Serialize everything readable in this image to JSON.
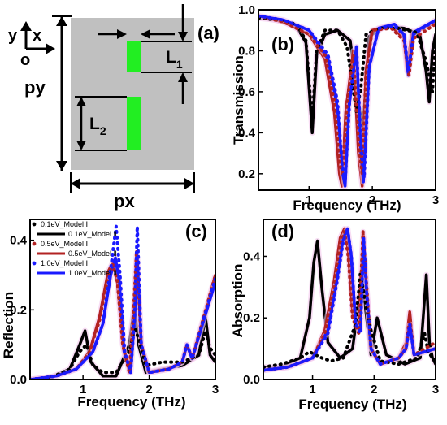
{
  "panels": {
    "a": {
      "label": "(a)",
      "axis_y": "y",
      "axis_x": "x",
      "axis_o": "o",
      "dim_py": "py",
      "dim_px": "px",
      "dim_L1": "L",
      "dim_L1_sub": "1",
      "dim_L2": "L",
      "dim_L2_sub": "2",
      "colors": {
        "cell": "#c0c0c0",
        "strip": "#22ee22"
      }
    },
    "b": {
      "label": "(b)",
      "xlabel": "Frequency (THz)",
      "ylabel": "Transmission",
      "xticks": [
        "1",
        "2",
        "3"
      ],
      "yticks": [
        "0.2",
        "0.4",
        "0.6",
        "0.8",
        "1.0"
      ]
    },
    "c": {
      "label": "(c)",
      "xlabel": "Frequency (THz)",
      "ylabel": "Reflection",
      "xticks": [
        "1",
        "2",
        "3"
      ],
      "yticks": [
        "0.0",
        "0.2",
        "0.4"
      ]
    },
    "d": {
      "label": "(d)",
      "xlabel": "Frequency (THz)",
      "ylabel": "Absorption",
      "xticks": [
        "1",
        "2",
        "3"
      ],
      "yticks": [
        "0.0",
        "0.2",
        "0.4"
      ]
    }
  },
  "legend": [
    {
      "text": "0.1eV_Model Ⅰ",
      "color": "#000000",
      "style": "dot"
    },
    {
      "text": "0.1eV_Model Ⅱ",
      "color": "#000000",
      "style": "line"
    },
    {
      "text": "0.5eV_Model Ⅰ",
      "color": "#b22222",
      "style": "dot"
    },
    {
      "text": "0.5eV_Model Ⅱ",
      "color": "#b22222",
      "style": "line"
    },
    {
      "text": "1.0eV_Model Ⅰ",
      "color": "#1a1aff",
      "style": "dot"
    },
    {
      "text": "1.0eV_Model Ⅱ",
      "color": "#1a1aff",
      "style": "line"
    }
  ],
  "chart_data": [
    {
      "panel": "b",
      "type": "line",
      "xlim": [
        0.2,
        3.0
      ],
      "ylim": [
        0.12,
        1.0
      ],
      "series": [
        {
          "name": "0.1eV_Model Ⅰ",
          "color": "#000000",
          "style": "dot",
          "x": [
            0.2,
            0.5,
            0.8,
            0.95,
            1.05,
            1.12,
            1.25,
            1.45,
            1.6,
            1.75,
            1.82,
            1.9,
            2.1,
            2.4,
            2.7,
            2.85,
            2.95,
            3.0
          ],
          "y": [
            0.96,
            0.95,
            0.93,
            0.85,
            0.45,
            0.8,
            0.9,
            0.9,
            0.82,
            0.5,
            0.62,
            0.88,
            0.91,
            0.91,
            0.89,
            0.75,
            0.6,
            0.85
          ]
        },
        {
          "name": "0.1eV_Model Ⅱ",
          "color": "#000000",
          "style": "line",
          "x": [
            0.2,
            0.5,
            0.8,
            0.95,
            1.05,
            1.12,
            1.25,
            1.45,
            1.65,
            1.78,
            1.85,
            1.95,
            2.2,
            2.5,
            2.75,
            2.85,
            2.9,
            2.95,
            3.0
          ],
          "y": [
            0.96,
            0.95,
            0.92,
            0.84,
            0.4,
            0.78,
            0.88,
            0.9,
            0.85,
            0.55,
            0.42,
            0.87,
            0.92,
            0.91,
            0.88,
            0.7,
            0.55,
            0.8,
            0.88
          ]
        },
        {
          "name": "0.5eV_Model Ⅰ",
          "color": "#b22222",
          "style": "dot",
          "x": [
            0.2,
            0.6,
            1.0,
            1.25,
            1.4,
            1.48,
            1.53,
            1.6,
            1.7,
            1.78,
            1.84,
            1.9,
            2.0,
            2.3,
            2.5,
            2.58,
            2.65,
            3.0
          ],
          "y": [
            0.97,
            0.94,
            0.88,
            0.78,
            0.55,
            0.25,
            0.2,
            0.55,
            0.78,
            0.35,
            0.2,
            0.7,
            0.9,
            0.91,
            0.85,
            0.68,
            0.86,
            0.93
          ]
        },
        {
          "name": "0.5eV_Model Ⅱ",
          "color": "#b22222",
          "style": "line",
          "x": [
            0.2,
            0.6,
            1.0,
            1.25,
            1.4,
            1.48,
            1.52,
            1.58,
            1.7,
            1.78,
            1.84,
            1.9,
            2.0,
            2.3,
            2.5,
            2.55,
            2.62,
            3.0
          ],
          "y": [
            0.97,
            0.94,
            0.88,
            0.76,
            0.5,
            0.2,
            0.14,
            0.5,
            0.8,
            0.3,
            0.14,
            0.7,
            0.9,
            0.92,
            0.86,
            0.7,
            0.88,
            0.94
          ]
        },
        {
          "name": "1.0eV_Model Ⅰ",
          "color": "#1a1aff",
          "style": "dot",
          "x": [
            0.2,
            0.6,
            1.0,
            1.3,
            1.45,
            1.52,
            1.57,
            1.64,
            1.75,
            1.82,
            1.87,
            1.95,
            2.1,
            2.35,
            2.5,
            2.57,
            2.65,
            3.0
          ],
          "y": [
            0.97,
            0.95,
            0.9,
            0.78,
            0.55,
            0.25,
            0.16,
            0.55,
            0.82,
            0.35,
            0.18,
            0.72,
            0.91,
            0.92,
            0.88,
            0.7,
            0.88,
            0.95
          ]
        },
        {
          "name": "1.0eV_Model Ⅱ",
          "color": "#1a1aff",
          "style": "line",
          "x": [
            0.2,
            0.6,
            1.0,
            1.3,
            1.45,
            1.53,
            1.57,
            1.63,
            1.75,
            1.82,
            1.86,
            1.95,
            2.1,
            2.35,
            2.5,
            2.57,
            2.65,
            3.0
          ],
          "y": [
            0.97,
            0.95,
            0.9,
            0.76,
            0.52,
            0.2,
            0.14,
            0.52,
            0.82,
            0.3,
            0.16,
            0.72,
            0.91,
            0.93,
            0.88,
            0.68,
            0.89,
            0.95
          ]
        }
      ]
    },
    {
      "panel": "c",
      "type": "line",
      "xlim": [
        0.2,
        3.0
      ],
      "ylim": [
        0.0,
        0.46
      ],
      "series": [
        {
          "name": "0.1eV_Model Ⅰ",
          "color": "#000000",
          "style": "dot",
          "x": [
            0.2,
            0.5,
            0.8,
            0.95,
            1.05,
            1.15,
            1.3,
            1.5,
            1.7,
            1.78,
            1.85,
            1.95,
            2.2,
            2.5,
            2.75,
            2.85,
            2.92,
            3.0
          ],
          "y": [
            0.0,
            0.005,
            0.03,
            0.08,
            0.1,
            0.04,
            0.02,
            0.02,
            0.08,
            0.15,
            0.11,
            0.04,
            0.05,
            0.05,
            0.07,
            0.14,
            0.09,
            0.07
          ]
        },
        {
          "name": "0.1eV_Model Ⅱ",
          "color": "#000000",
          "style": "line",
          "x": [
            0.2,
            0.5,
            0.8,
            0.95,
            1.03,
            1.12,
            1.3,
            1.5,
            1.7,
            1.78,
            1.84,
            1.95,
            2.2,
            2.5,
            2.75,
            2.85,
            2.92,
            3.0
          ],
          "y": [
            0.0,
            0.005,
            0.03,
            0.1,
            0.14,
            0.05,
            0.01,
            0.01,
            0.1,
            0.22,
            0.1,
            0.02,
            0.03,
            0.04,
            0.07,
            0.18,
            0.07,
            0.05
          ]
        },
        {
          "name": "0.5eV_Model Ⅰ",
          "color": "#b22222",
          "style": "dot",
          "x": [
            0.2,
            0.6,
            0.9,
            1.1,
            1.25,
            1.38,
            1.45,
            1.52,
            1.6,
            1.7,
            1.76,
            1.81,
            1.88,
            2.0,
            2.3,
            2.5,
            2.57,
            2.65,
            3.0
          ],
          "y": [
            0.0,
            0.01,
            0.03,
            0.08,
            0.17,
            0.3,
            0.33,
            0.28,
            0.1,
            0.02,
            0.18,
            0.37,
            0.1,
            0.02,
            0.03,
            0.05,
            0.1,
            0.06,
            0.3
          ]
        },
        {
          "name": "0.5eV_Model Ⅱ",
          "color": "#b22222",
          "style": "line",
          "x": [
            0.2,
            0.6,
            0.9,
            1.1,
            1.25,
            1.38,
            1.46,
            1.52,
            1.6,
            1.7,
            1.76,
            1.81,
            1.88,
            2.0,
            2.3,
            2.5,
            2.57,
            2.65,
            3.0
          ],
          "y": [
            0.0,
            0.01,
            0.03,
            0.08,
            0.18,
            0.31,
            0.34,
            0.28,
            0.1,
            0.02,
            0.18,
            0.36,
            0.1,
            0.02,
            0.03,
            0.05,
            0.1,
            0.06,
            0.3
          ]
        },
        {
          "name": "1.0eV_Model Ⅰ",
          "color": "#1a1aff",
          "style": "dot",
          "x": [
            0.2,
            0.6,
            0.9,
            1.15,
            1.3,
            1.42,
            1.5,
            1.56,
            1.63,
            1.72,
            1.78,
            1.82,
            1.88,
            2.0,
            2.3,
            2.5,
            2.57,
            2.65,
            3.0
          ],
          "y": [
            0.0,
            0.01,
            0.03,
            0.08,
            0.16,
            0.32,
            0.44,
            0.3,
            0.08,
            0.02,
            0.18,
            0.44,
            0.1,
            0.02,
            0.03,
            0.05,
            0.1,
            0.06,
            0.29
          ]
        },
        {
          "name": "1.0eV_Model Ⅱ",
          "color": "#1a1aff",
          "style": "line",
          "x": [
            0.2,
            0.6,
            0.9,
            1.15,
            1.3,
            1.42,
            1.49,
            1.55,
            1.62,
            1.72,
            1.78,
            1.82,
            1.88,
            2.0,
            2.3,
            2.5,
            2.57,
            2.65,
            3.0
          ],
          "y": [
            0.0,
            0.01,
            0.03,
            0.08,
            0.16,
            0.3,
            0.35,
            0.28,
            0.08,
            0.02,
            0.18,
            0.35,
            0.1,
            0.02,
            0.03,
            0.05,
            0.1,
            0.06,
            0.28
          ]
        }
      ]
    },
    {
      "panel": "d",
      "type": "line",
      "xlim": [
        0.2,
        3.0
      ],
      "ylim": [
        0.0,
        0.52
      ],
      "series": [
        {
          "name": "0.1eV_Model Ⅰ",
          "color": "#000000",
          "style": "dot",
          "x": [
            0.2,
            0.5,
            0.8,
            0.95,
            1.05,
            1.15,
            1.3,
            1.5,
            1.7,
            1.78,
            1.85,
            1.95,
            2.1,
            2.4,
            2.7,
            2.82,
            2.88,
            2.95,
            3.0
          ],
          "y": [
            0.04,
            0.05,
            0.07,
            0.09,
            0.08,
            0.07,
            0.06,
            0.07,
            0.18,
            0.35,
            0.26,
            0.16,
            0.06,
            0.05,
            0.07,
            0.15,
            0.09,
            0.07,
            0.06
          ]
        },
        {
          "name": "0.1eV_Model Ⅱ",
          "color": "#000000",
          "style": "line",
          "x": [
            0.2,
            0.5,
            0.8,
            0.95,
            1.02,
            1.08,
            1.15,
            1.25,
            1.45,
            1.65,
            1.75,
            1.8,
            1.85,
            1.95,
            2.05,
            2.2,
            2.5,
            2.75,
            2.85,
            2.9,
            2.95,
            3.0
          ],
          "y": [
            0.04,
            0.04,
            0.07,
            0.2,
            0.38,
            0.45,
            0.3,
            0.12,
            0.07,
            0.1,
            0.25,
            0.34,
            0.25,
            0.08,
            0.2,
            0.08,
            0.05,
            0.07,
            0.34,
            0.12,
            0.07,
            0.05
          ]
        },
        {
          "name": "0.5eV_Model Ⅰ",
          "color": "#b22222",
          "style": "dot",
          "x": [
            0.2,
            0.6,
            1.0,
            1.2,
            1.35,
            1.45,
            1.52,
            1.58,
            1.65,
            1.75,
            1.82,
            1.88,
            1.95,
            2.1,
            2.4,
            2.52,
            2.58,
            2.65,
            3.0
          ],
          "y": [
            0.03,
            0.04,
            0.07,
            0.15,
            0.3,
            0.44,
            0.48,
            0.4,
            0.2,
            0.15,
            0.48,
            0.3,
            0.1,
            0.05,
            0.07,
            0.1,
            0.2,
            0.08,
            0.12
          ]
        },
        {
          "name": "0.5eV_Model Ⅱ",
          "color": "#b22222",
          "style": "line",
          "x": [
            0.2,
            0.6,
            1.0,
            1.2,
            1.35,
            1.45,
            1.52,
            1.58,
            1.65,
            1.75,
            1.82,
            1.88,
            1.95,
            2.1,
            2.4,
            2.52,
            2.58,
            2.65,
            3.0
          ],
          "y": [
            0.03,
            0.04,
            0.07,
            0.16,
            0.32,
            0.46,
            0.49,
            0.42,
            0.22,
            0.16,
            0.48,
            0.3,
            0.1,
            0.05,
            0.07,
            0.12,
            0.22,
            0.08,
            0.1
          ]
        },
        {
          "name": "1.0eV_Model Ⅰ",
          "color": "#1a1aff",
          "style": "dot",
          "x": [
            0.2,
            0.6,
            1.0,
            1.25,
            1.4,
            1.5,
            1.57,
            1.63,
            1.7,
            1.78,
            1.83,
            1.88,
            1.95,
            2.1,
            2.4,
            2.52,
            2.58,
            2.65,
            3.0
          ],
          "y": [
            0.03,
            0.04,
            0.07,
            0.15,
            0.32,
            0.45,
            0.49,
            0.4,
            0.18,
            0.15,
            0.46,
            0.28,
            0.1,
            0.05,
            0.07,
            0.1,
            0.18,
            0.08,
            0.1
          ]
        },
        {
          "name": "1.0eV_Model Ⅱ",
          "color": "#1a1aff",
          "style": "line",
          "x": [
            0.2,
            0.6,
            1.0,
            1.25,
            1.4,
            1.5,
            1.57,
            1.63,
            1.7,
            1.78,
            1.83,
            1.88,
            1.95,
            2.1,
            2.4,
            2.52,
            2.58,
            2.65,
            3.0
          ],
          "y": [
            0.03,
            0.04,
            0.07,
            0.16,
            0.33,
            0.46,
            0.49,
            0.4,
            0.18,
            0.16,
            0.46,
            0.28,
            0.1,
            0.05,
            0.07,
            0.1,
            0.18,
            0.08,
            0.1
          ]
        }
      ]
    }
  ]
}
